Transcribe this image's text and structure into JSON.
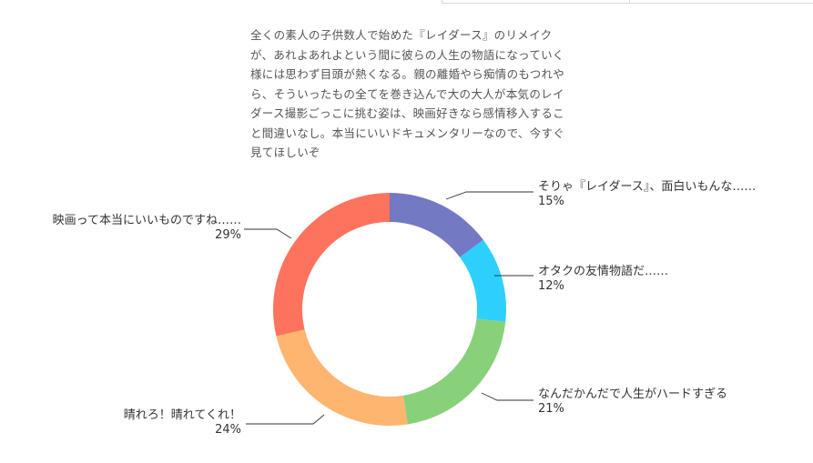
{
  "comment_text": "全くの素人の子供数人で始めた『レイダース』のリメイクが、あれよあれよという間に彼らの人生の物語になっていく様には思わず目頭が熱くなる。親の離婚やら痴情のもつれやら、そういったもの全てを巻き込んで大の大人が本気のレイダース撮影ごっこに挑む姿は、映画好きなら感情移入すること間違いなし。本当にいいドキュメンタリーなので、今すぐ見てほしいぞ",
  "chart_data": {
    "type": "pie",
    "variant": "donut",
    "title": "",
    "slices": [
      {
        "label": "そりゃ『レイダース』、面白いもんな……",
        "value": 15,
        "value_label": "15%",
        "color": "#7479C4",
        "side": "right"
      },
      {
        "label": "オタクの友情物語だ……",
        "value": 12,
        "value_label": "12%",
        "color": "#2DD0FB",
        "side": "right"
      },
      {
        "label": "なんだかんだで人生がハードすぎる",
        "value": 21,
        "value_label": "21%",
        "color": "#89D07A",
        "side": "right"
      },
      {
        "label": "晴れろ！晴れてくれ！",
        "value": 24,
        "value_label": "24%",
        "color": "#FDB56F",
        "side": "left"
      },
      {
        "label": "映画って本当にいいものですね……",
        "value": 29,
        "value_label": "29%",
        "color": "#FE735E",
        "side": "left"
      }
    ],
    "start_angle_deg": 0,
    "direction": "clockwise",
    "legend": "none"
  }
}
